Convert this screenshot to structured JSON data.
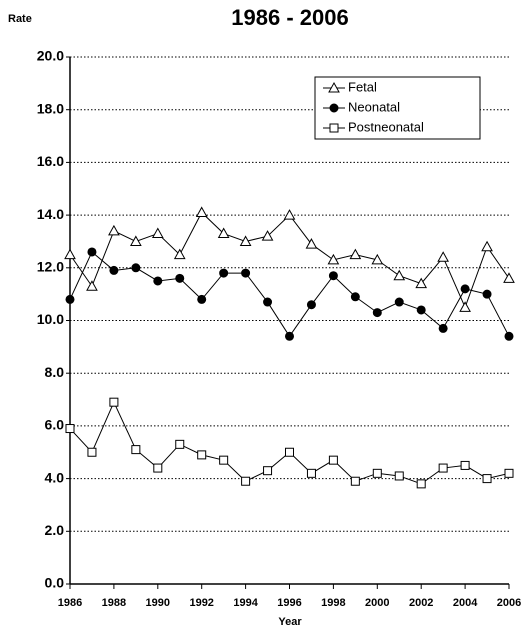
{
  "chart_data": {
    "type": "line",
    "title": "1986 - 2006",
    "y_label": "Rate",
    "x_label": "Year",
    "x": [
      1986,
      1987,
      1988,
      1989,
      1990,
      1991,
      1992,
      1993,
      1994,
      1995,
      1996,
      1997,
      1998,
      1999,
      2000,
      2001,
      2002,
      2003,
      2004,
      2005,
      2006
    ],
    "series": [
      {
        "name": "Fetal",
        "color": "#000000",
        "marker": "triangle-open",
        "values": [
          12.5,
          11.3,
          13.4,
          13.0,
          13.3,
          12.5,
          14.1,
          13.3,
          13.0,
          13.2,
          14.0,
          12.9,
          12.3,
          12.5,
          12.3,
          11.7,
          11.4,
          12.4,
          10.5,
          12.8,
          11.6
        ]
      },
      {
        "name": "Neonatal",
        "color": "#000000",
        "marker": "circle-filled",
        "values": [
          10.8,
          12.6,
          11.9,
          12.0,
          11.5,
          11.6,
          10.8,
          11.8,
          11.8,
          10.7,
          9.4,
          10.6,
          11.7,
          10.9,
          10.3,
          10.7,
          10.4,
          9.7,
          11.2,
          11.0,
          9.4
        ]
      },
      {
        "name": "Postneonatal",
        "color": "#000000",
        "marker": "square-open",
        "values": [
          5.9,
          5.0,
          6.9,
          5.1,
          4.4,
          5.3,
          4.9,
          4.7,
          3.9,
          4.3,
          5.0,
          4.2,
          4.7,
          3.9,
          4.2,
          4.1,
          3.8,
          4.4,
          4.5,
          4.0,
          4.2
        ]
      }
    ],
    "xlim": [
      1986,
      2006
    ],
    "xticks": [
      1986,
      1988,
      1990,
      1992,
      1994,
      1996,
      1998,
      2000,
      2002,
      2004,
      2006
    ],
    "ylim": [
      0,
      20
    ],
    "yticks": [
      {
        "value": 0,
        "label": "0.0"
      },
      {
        "value": 2,
        "label": "2.0"
      },
      {
        "value": 4,
        "label": "4.0"
      },
      {
        "value": 6,
        "label": "6.0"
      },
      {
        "value": 8,
        "label": "8.0"
      },
      {
        "value": 10,
        "label": "10.0"
      },
      {
        "value": 12,
        "label": "12.0"
      },
      {
        "value": 14,
        "label": "14.0"
      },
      {
        "value": 16,
        "label": "16.0"
      },
      {
        "value": 18,
        "label": "18.0"
      },
      {
        "value": 20,
        "label": "20.0"
      }
    ],
    "grid": true,
    "legend_position": "upper right"
  }
}
